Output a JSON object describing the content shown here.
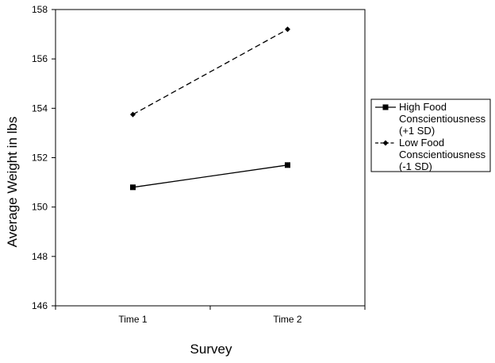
{
  "chart_data": {
    "type": "line",
    "title": "",
    "xlabel": "Survey",
    "ylabel": "Average Weight  in lbs",
    "categories": [
      "Time 1",
      "Time 2"
    ],
    "ylim": [
      146,
      158
    ],
    "yticks": [
      "146",
      "148",
      "150",
      "152",
      "154",
      "156",
      "158"
    ],
    "grid": false,
    "legend_position": "right",
    "series": [
      {
        "name": "High Food Conscientiousness (+1 SD)",
        "legend_lines": [
          "High Food",
          "Conscientiousness",
          "(+1 SD)"
        ],
        "values": [
          150.8,
          151.7
        ],
        "line_style": "solid",
        "marker": "square",
        "color": "#000000"
      },
      {
        "name": "Low Food Conscientiousness (-1 SD)",
        "legend_lines": [
          "Low Food",
          "Conscientiousness",
          "(-1 SD)"
        ],
        "values": [
          153.75,
          157.2
        ],
        "line_style": "dashed",
        "marker": "diamond",
        "color": "#000000"
      }
    ]
  }
}
